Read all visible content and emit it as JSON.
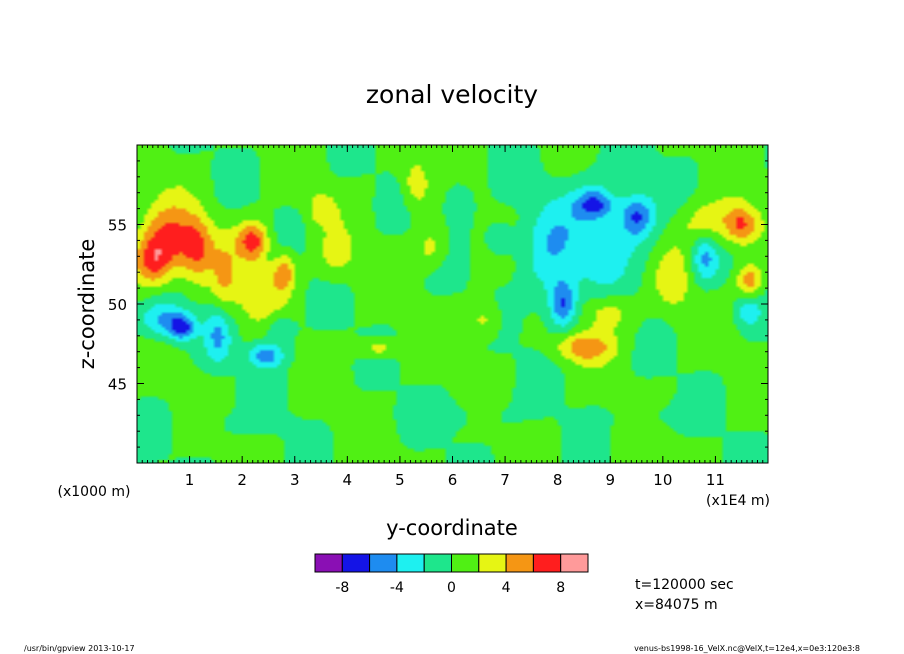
{
  "chart_data": {
    "type": "heatmap",
    "title": "zonal velocity",
    "xlabel": "y-coordinate",
    "ylabel": "z-coordinate",
    "x_unit": "(x1E4 m)",
    "y_unit": "(x1000 m)",
    "xlim": [
      0,
      12
    ],
    "ylim": [
      40,
      60
    ],
    "x_ticks": [
      "1",
      "2",
      "3",
      "4",
      "5",
      "6",
      "7",
      "8",
      "9",
      "10",
      "11"
    ],
    "y_ticks": [
      "45",
      "50",
      "55"
    ],
    "colorbar": {
      "levels": [
        -10,
        -8,
        -6,
        -4,
        -2,
        0,
        2,
        4,
        6,
        8,
        10
      ],
      "tick_labels": [
        "-8",
        "-4",
        "0",
        "4",
        "8"
      ],
      "tick_values": [
        -8,
        -4,
        0,
        4,
        8
      ],
      "colors": [
        "#8a0fb4",
        "#1414e6",
        "#1e8cf0",
        "#1ef0f0",
        "#1ee68c",
        "#50f014",
        "#e6f514",
        "#f59614",
        "#ff1e1e",
        "#ff9a9a"
      ]
    },
    "blobs": [
      {
        "y": 0.6,
        "z": 54.0,
        "ry": 0.55,
        "rz": 2.2,
        "v": 6.2
      },
      {
        "y": 0.3,
        "z": 52.5,
        "ry": 0.35,
        "rz": 1.5,
        "v": 5.0
      },
      {
        "y": 1.15,
        "z": 53.5,
        "ry": 0.3,
        "rz": 2.0,
        "v": 4.5
      },
      {
        "y": 0.5,
        "z": 49.0,
        "ry": 0.45,
        "rz": 1.2,
        "v": -4.8
      },
      {
        "y": 0.85,
        "z": 48.5,
        "ry": 0.25,
        "rz": 0.8,
        "v": -6.0
      },
      {
        "y": 1.55,
        "z": 48.0,
        "ry": 0.25,
        "rz": 1.8,
        "v": -4.0
      },
      {
        "y": 1.65,
        "z": 51.5,
        "ry": 0.25,
        "rz": 2.5,
        "v": 3.0
      },
      {
        "y": 2.2,
        "z": 54.0,
        "ry": 0.3,
        "rz": 1.2,
        "v": 6.5
      },
      {
        "y": 2.3,
        "z": 51.0,
        "ry": 0.45,
        "rz": 2.0,
        "v": 3.2
      },
      {
        "y": 2.8,
        "z": 52.0,
        "ry": 0.2,
        "rz": 1.2,
        "v": 5.0
      },
      {
        "y": 2.45,
        "z": 46.8,
        "ry": 0.35,
        "rz": 0.8,
        "v": -5.5
      },
      {
        "y": 2.7,
        "z": 48.5,
        "ry": 0.3,
        "rz": 0.9,
        "v": -2.8
      },
      {
        "y": 3.5,
        "z": 56.0,
        "ry": 0.25,
        "rz": 1.0,
        "v": 3.0
      },
      {
        "y": 3.8,
        "z": 53.0,
        "ry": 0.35,
        "rz": 1.5,
        "v": 2.6
      },
      {
        "y": 4.6,
        "z": 47.2,
        "ry": 0.35,
        "rz": 0.6,
        "v": 3.4
      },
      {
        "y": 5.3,
        "z": 57.5,
        "ry": 0.25,
        "rz": 1.5,
        "v": 3.4
      },
      {
        "y": 5.6,
        "z": 53.5,
        "ry": 0.3,
        "rz": 1.3,
        "v": 2.8
      },
      {
        "y": 6.1,
        "z": 56.5,
        "ry": 0.3,
        "rz": 1.5,
        "v": -2.6
      },
      {
        "y": 6.9,
        "z": 54.0,
        "ry": 0.3,
        "rz": 1.2,
        "v": -2.4
      },
      {
        "y": 6.6,
        "z": 49.0,
        "ry": 0.3,
        "rz": 1.2,
        "v": 3.0
      },
      {
        "y": 7.8,
        "z": 52.5,
        "ry": 0.5,
        "rz": 3.5,
        "v": -2.8
      },
      {
        "y": 8.1,
        "z": 50.0,
        "ry": 0.25,
        "rz": 1.5,
        "v": -6.0
      },
      {
        "y": 8.85,
        "z": 54.5,
        "ry": 1.0,
        "rz": 3.5,
        "v": -3.2
      },
      {
        "y": 8.7,
        "z": 56.3,
        "ry": 0.35,
        "rz": 0.9,
        "v": -5.5
      },
      {
        "y": 9.5,
        "z": 55.5,
        "ry": 0.3,
        "rz": 1.3,
        "v": -5.3
      },
      {
        "y": 8.5,
        "z": 47.3,
        "ry": 0.55,
        "rz": 0.9,
        "v": 4.8
      },
      {
        "y": 8.95,
        "z": 49.5,
        "ry": 0.5,
        "rz": 1.2,
        "v": 3.2
      },
      {
        "y": 10.2,
        "z": 51.5,
        "ry": 0.35,
        "rz": 2.0,
        "v": 2.8
      },
      {
        "y": 10.9,
        "z": 55.0,
        "ry": 0.6,
        "rz": 1.5,
        "v": 3.6
      },
      {
        "y": 11.5,
        "z": 55.0,
        "ry": 0.3,
        "rz": 1.2,
        "v": 5.2
      },
      {
        "y": 10.8,
        "z": 53.0,
        "ry": 0.25,
        "rz": 1.5,
        "v": -4.5
      },
      {
        "y": 11.65,
        "z": 51.5,
        "ry": 0.25,
        "rz": 1.0,
        "v": 5.0
      },
      {
        "y": 11.6,
        "z": 49.5,
        "ry": 0.25,
        "rz": 1.0,
        "v": -3.2
      },
      {
        "y": 6.2,
        "z": 43.0,
        "ry": 1.2,
        "rz": 1.0,
        "v": -1.1
      },
      {
        "y": 2.0,
        "z": 42.5,
        "ry": 0.8,
        "rz": 0.8,
        "v": -1.0
      },
      {
        "y": 10.0,
        "z": 43.0,
        "ry": 0.8,
        "rz": 0.8,
        "v": -1.1
      }
    ]
  },
  "annotations": {
    "time": "t=120000 sec",
    "position": "x=84075 m",
    "footer_left": "/usr/bin/gpview   2013-10-17",
    "footer_right": "venus-bs1998-16_VelX.nc@VelX,t=12e4,x=0e3:120e3:8"
  }
}
